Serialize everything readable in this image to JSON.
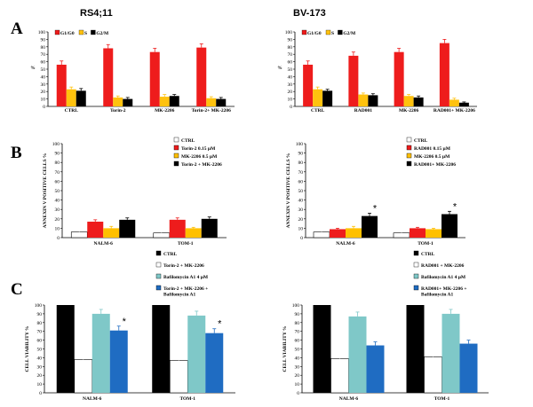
{
  "figure": {
    "panel_labels": [
      "A",
      "B",
      "C"
    ],
    "cell_lines": [
      "RS4;11",
      "BV-173"
    ]
  },
  "colors": {
    "red": "#ee1c1c",
    "yellow": "#ffc20e",
    "black": "#000000",
    "white": "#ffffff",
    "orange": "#ffc000",
    "teal": "#7fc8c8",
    "blue": "#1f6cc2"
  },
  "chart_data": [
    {
      "id": "A-left",
      "type": "bar",
      "title": "RS4;11",
      "panel": "A",
      "ylabel": "%",
      "xlabel": "",
      "ylim": [
        0,
        100
      ],
      "yticks": [
        "0",
        "10",
        "20",
        "30",
        "40",
        "50",
        "60",
        "70",
        "80",
        "90",
        "100"
      ],
      "categories": [
        "CTRL",
        "Torin-2",
        "MK-2206",
        "Torin-2+ MK-2206"
      ],
      "legend": {
        "labels": [
          "G1/G0",
          "S",
          "G2/M"
        ],
        "position": "top-left"
      },
      "series": [
        {
          "name": "G1/G0",
          "color": "#ee1c1c",
          "values": [
            56,
            78,
            73,
            79
          ],
          "errors": [
            5,
            5,
            5,
            5
          ]
        },
        {
          "name": "S",
          "color": "#ffc20e",
          "values": [
            23,
            12,
            13,
            11
          ],
          "errors": [
            3,
            2,
            3,
            2
          ]
        },
        {
          "name": "G2/M",
          "color": "#000000",
          "values": [
            21,
            10,
            14,
            10
          ],
          "errors": [
            3,
            2,
            2,
            2
          ]
        }
      ],
      "significance": []
    },
    {
      "id": "A-right",
      "type": "bar",
      "title": "BV-173",
      "panel": "A",
      "ylabel": "%",
      "xlabel": "",
      "ylim": [
        0,
        100
      ],
      "yticks": [
        "0",
        "10",
        "20",
        "30",
        "40",
        "50",
        "60",
        "70",
        "80",
        "90",
        "100"
      ],
      "categories": [
        "CTRL",
        "RAD001",
        "MK-2206",
        "RAD001+ MK-2206"
      ],
      "legend": {
        "labels": [
          "G1/G0",
          "S",
          "G2/M"
        ],
        "position": "top-left"
      },
      "series": [
        {
          "name": "G1/G0",
          "color": "#ee1c1c",
          "values": [
            56,
            68,
            73,
            85
          ],
          "errors": [
            5,
            5,
            5,
            5
          ]
        },
        {
          "name": "S",
          "color": "#ffc20e",
          "values": [
            23,
            16,
            14,
            9
          ],
          "errors": [
            3,
            2,
            2,
            2
          ]
        },
        {
          "name": "G2/M",
          "color": "#000000",
          "values": [
            21,
            15,
            12,
            5
          ],
          "errors": [
            2,
            2,
            2,
            1
          ]
        }
      ],
      "significance": []
    },
    {
      "id": "B-left",
      "type": "bar",
      "panel": "B",
      "title": "",
      "ylabel": "ANNEXIN V POSITIVE CELLS %",
      "xlabel": "",
      "ylim": [
        0,
        100
      ],
      "yticks": [
        "0",
        "10",
        "20",
        "30",
        "40",
        "50",
        "60",
        "70",
        "80",
        "90",
        "100"
      ],
      "categories": [
        "NALM-6",
        "TOM-1"
      ],
      "legend": {
        "labels": [
          "CTRL",
          "Torin-2 0.15 µM",
          "MK-2206 0.5 µM",
          "Torin-2 + MK-2206"
        ],
        "position": "top-right"
      },
      "series": [
        {
          "name": "CTRL",
          "color": "#ffffff",
          "values": [
            6,
            5
          ],
          "errors": [
            1,
            1
          ]
        },
        {
          "name": "Torin-2 0.15 µM",
          "color": "#ee1c1c",
          "values": [
            17,
            19
          ],
          "errors": [
            2,
            2
          ]
        },
        {
          "name": "MK-2206 0.5 µM",
          "color": "#ffc000",
          "values": [
            10,
            10
          ],
          "errors": [
            2,
            1
          ]
        },
        {
          "name": "Torin-2 + MK-2206",
          "color": "#000000",
          "values": [
            19,
            20
          ],
          "errors": [
            2,
            2
          ]
        }
      ],
      "significance": []
    },
    {
      "id": "B-right",
      "type": "bar",
      "panel": "B",
      "title": "",
      "ylabel": "ANNEXIN V POSITIVE CELLS %",
      "xlabel": "",
      "ylim": [
        0,
        100
      ],
      "yticks": [
        "0",
        "10",
        "20",
        "30",
        "40",
        "50",
        "60",
        "70",
        "80",
        "90",
        "100"
      ],
      "categories": [
        "NALM-6",
        "TOM-1"
      ],
      "legend": {
        "labels": [
          "CTRL",
          "RAD001 0.15 µM",
          "MK-2206 0.5 µM",
          "RAD001+ MK-2206"
        ],
        "position": "top-right"
      },
      "series": [
        {
          "name": "CTRL",
          "color": "#ffffff",
          "values": [
            6,
            5
          ],
          "errors": [
            1,
            1
          ]
        },
        {
          "name": "RAD001 0.15 µM",
          "color": "#ee1c1c",
          "values": [
            9,
            10
          ],
          "errors": [
            1,
            1
          ]
        },
        {
          "name": "MK-2206 0.5 µM",
          "color": "#ffc000",
          "values": [
            10,
            9
          ],
          "errors": [
            2,
            1
          ]
        },
        {
          "name": "RAD001+ MK-2206",
          "color": "#000000",
          "values": [
            23,
            25
          ],
          "errors": [
            3,
            3
          ]
        }
      ],
      "significance": [
        {
          "category": 0,
          "series": 3,
          "label": "*"
        },
        {
          "category": 1,
          "series": 3,
          "label": "*"
        }
      ]
    },
    {
      "id": "C-left",
      "type": "bar",
      "panel": "C",
      "title": "",
      "ylabel": "CELL VIABILITY %",
      "xlabel": "",
      "ylim": [
        0,
        100
      ],
      "yticks": [
        "0",
        "10",
        "20",
        "30",
        "40",
        "50",
        "60",
        "70",
        "80",
        "90",
        "100"
      ],
      "categories": [
        "NALM-6",
        "TOM-1"
      ],
      "legend": {
        "labels": [
          "CTRL",
          "Torin-2 + MK-2206",
          "Bafilomycin A1 4 µM",
          "Torin-2 + MK-2206 + Bafilomycin A1"
        ],
        "position": "top-right"
      },
      "series": [
        {
          "name": "CTRL",
          "color": "#000000",
          "values": [
            100,
            100
          ],
          "errors": [
            0,
            0
          ]
        },
        {
          "name": "Torin-2 + MK-2206",
          "color": "#ffffff",
          "values": [
            38,
            37
          ],
          "errors": [
            3,
            3
          ]
        },
        {
          "name": "Bafilomycin A1 4 µM",
          "color": "#7fc8c8",
          "values": [
            90,
            88
          ],
          "errors": [
            5,
            5
          ]
        },
        {
          "name": "Torin-2 + MK-2206 + Bafilomycin A1",
          "color": "#1f6cc2",
          "values": [
            71,
            68
          ],
          "errors": [
            5,
            5
          ]
        }
      ],
      "significance": [
        {
          "category": 0,
          "series": 3,
          "label": "*"
        },
        {
          "category": 1,
          "series": 3,
          "label": "*"
        }
      ]
    },
    {
      "id": "C-right",
      "type": "bar",
      "panel": "C",
      "title": "",
      "ylabel": "CELL VIABILITY %",
      "xlabel": "",
      "ylim": [
        0,
        100
      ],
      "yticks": [
        "0",
        "10",
        "20",
        "30",
        "40",
        "50",
        "60",
        "70",
        "80",
        "90",
        "100"
      ],
      "categories": [
        "NALM-6",
        "TOM-1"
      ],
      "legend": {
        "labels": [
          "CTRL",
          "RAD001 + MK-2206",
          "Bafilomycin A1 4 µM",
          "RAD001+ MK-2206 + Bafilomycin A1"
        ],
        "position": "top-right"
      },
      "series": [
        {
          "name": "CTRL",
          "color": "#000000",
          "values": [
            100,
            100
          ],
          "errors": [
            0,
            0
          ]
        },
        {
          "name": "RAD001 + MK-2206",
          "color": "#ffffff",
          "values": [
            39,
            41
          ],
          "errors": [
            3,
            3
          ]
        },
        {
          "name": "Bafilomycin A1 4 µM",
          "color": "#7fc8c8",
          "values": [
            87,
            90
          ],
          "errors": [
            5,
            5
          ]
        },
        {
          "name": "RAD001+ MK-2206 + Bafilomycin A1",
          "color": "#1f6cc2",
          "values": [
            54,
            56
          ],
          "errors": [
            4,
            4
          ]
        }
      ],
      "significance": []
    }
  ]
}
